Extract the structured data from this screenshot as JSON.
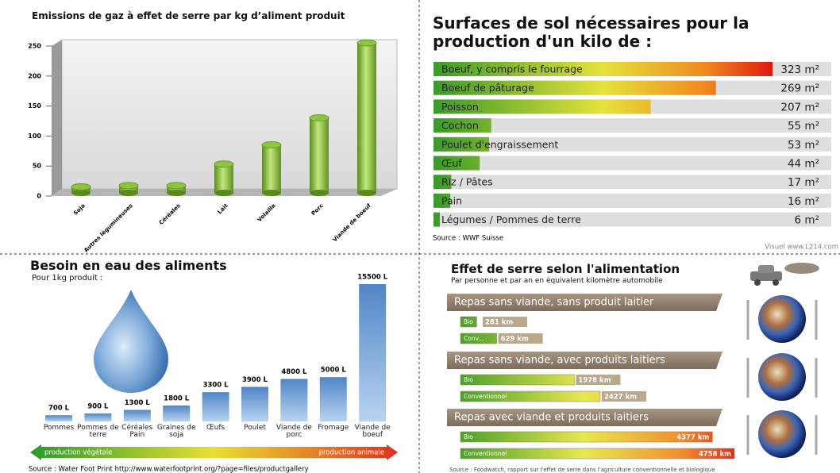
{
  "chart_data": [
    {
      "type": "bar",
      "title": "Emissions de gaz à effet de serre par kg d’aliment produit",
      "categories": [
        "Soja",
        "Autres légumineuses",
        "Céréales",
        "Lait",
        "Volaille",
        "Porc",
        "Viande de boeuf"
      ],
      "values": [
        10,
        12,
        12,
        48,
        80,
        125,
        250
      ],
      "color": "#8cc63f",
      "ylim": [
        0,
        250
      ],
      "yticks": [
        0,
        50,
        100,
        150,
        200,
        250
      ]
    },
    {
      "type": "barh",
      "title": "Surfaces de sol nécessaires pour la production d'un kilo de :",
      "categories": [
        "Boeuf, y compris le fourrage",
        "Boeuf de pâturage",
        "Poisson",
        "Cochon",
        "Poulet d'engraissement",
        "Œuf",
        "Riz / Pâtes",
        "Pain",
        "Légumes / Pommes de terre"
      ],
      "values": [
        323,
        269,
        207,
        55,
        53,
        44,
        17,
        16,
        6
      ],
      "value_labels": [
        "323 m²",
        "269 m²",
        "207 m²",
        "55 m²",
        "53 m²",
        "44 m²",
        "17 m²",
        "16 m²",
        "6 m²"
      ],
      "source": "Source : WWF Suisse",
      "credit": "Visuel www.L214.com"
    },
    {
      "type": "bar",
      "title": "Besoin en eau des aliments",
      "subtitle": "Pour 1kg produit :",
      "categories": [
        "Pommes",
        "Pommes de terre",
        "Céréales Pain",
        "Graines de soja",
        "Œufs",
        "Poulet",
        "Viande de porc",
        "Fromage",
        "Viande de boeuf"
      ],
      "values": [
        700,
        900,
        1300,
        1800,
        3300,
        3900,
        4800,
        5000,
        15500
      ],
      "value_labels": [
        "700 L",
        "900 L",
        "1300 L",
        "1800 L",
        "3300 L",
        "3900 L",
        "4800 L",
        "5000 L",
        "15500 L"
      ],
      "color": "#6a9bd4",
      "annotations": [
        "production végétale",
        "production animale"
      ],
      "source": "Source : Water Foot Print http://www.waterfootprint.org/?page=files/productgallery"
    },
    {
      "type": "barh_grouped",
      "title": "Effet de serre selon l'alimentation",
      "subtitle": "Par personne et par an en équivalent kilomètre automobile",
      "groups": [
        {
          "name": "Repas sans viande, sans produit laitier",
          "bars": [
            {
              "label": "Bio",
              "value": 281,
              "value_label": "281 km"
            },
            {
              "label": "Conv...",
              "value": 629,
              "value_label": "629 km"
            }
          ]
        },
        {
          "name": "Repas sans viande, avec produits laitiers",
          "bars": [
            {
              "label": "Bio",
              "value": 1978,
              "value_label": "1978 km"
            },
            {
              "label": "Conventionnel",
              "value": 2427,
              "value_label": "2427 km"
            }
          ]
        },
        {
          "name": "Repas avec viande et produits laitiers",
          "bars": [
            {
              "label": "Bio",
              "value": 4377,
              "value_label": "4377 km"
            },
            {
              "label": "Conventionnel",
              "value": 4758,
              "value_label": "4758 km"
            }
          ]
        }
      ],
      "source": "Source : Foodwatch, rapport sur l'effet de serre dans l'agriculture conventionnelle et biologique"
    }
  ]
}
